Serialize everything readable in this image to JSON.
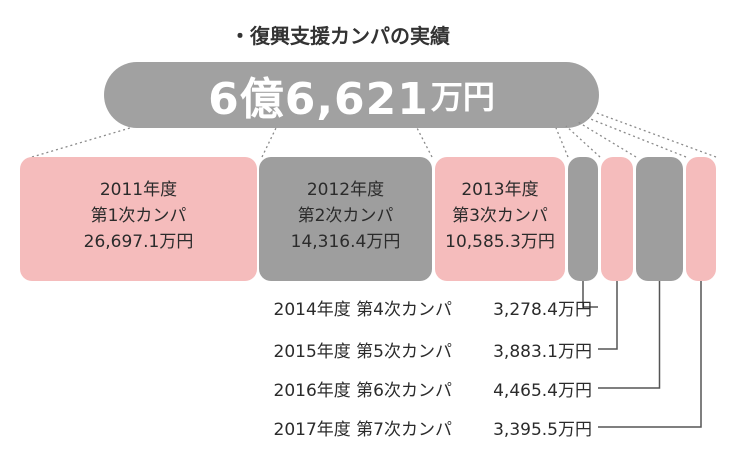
{
  "title": "・復興支援カンパの実績",
  "total": {
    "number": "6億6,621",
    "unit": "万円"
  },
  "colors": {
    "pink": "#f5bcbc",
    "gray": "#9e9e9e",
    "pill": "#a1a1a1",
    "line": "#555555"
  },
  "chart_data": {
    "type": "bar",
    "orientation": "stacked-horizontal",
    "unit": "万円",
    "total": 66621,
    "segments": [
      {
        "year": "2011年度",
        "round": "第1次カンパ",
        "value": 26697.1,
        "amount": "26,697.1万円",
        "color": "pink"
      },
      {
        "year": "2012年度",
        "round": "第2次カンパ",
        "value": 14316.4,
        "amount": "14,316.4万円",
        "color": "gray"
      },
      {
        "year": "2013年度",
        "round": "第3次カンパ",
        "value": 10585.3,
        "amount": "10,585.3万円",
        "color": "pink"
      },
      {
        "year": "2014年度",
        "round": "第4次カンパ",
        "value": 3278.4,
        "amount": "3,278.4万円",
        "color": "gray"
      },
      {
        "year": "2015年度",
        "round": "第5次カンパ",
        "value": 3883.1,
        "amount": "3,883.1万円",
        "color": "pink"
      },
      {
        "year": "2016年度",
        "round": "第6次カンパ",
        "value": 4465.4,
        "amount": "4,465.4万円",
        "color": "gray"
      },
      {
        "year": "2017年度",
        "round": "第7次カンパ",
        "value": 3395.5,
        "amount": "3,395.5万円",
        "color": "pink"
      }
    ]
  }
}
